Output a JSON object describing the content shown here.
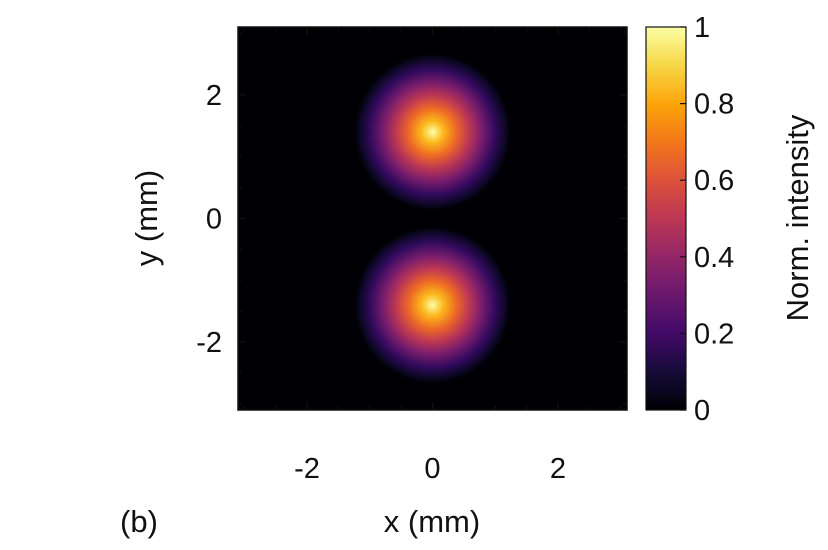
{
  "panel_label": "(b)",
  "chart_data": {
    "type": "heatmap",
    "title": "",
    "xlabel": "x (mm)",
    "ylabel": "y (mm)",
    "xlim": [
      -3.1,
      3.1
    ],
    "ylim": [
      -3.1,
      3.1
    ],
    "x_ticks": [
      -2,
      0,
      2
    ],
    "y_ticks": [
      2,
      0,
      -2
    ],
    "x_tick_labels": [
      "-2",
      "0",
      "2"
    ],
    "y_tick_labels": [
      "2",
      "0",
      "-2"
    ],
    "colormap": "inferno",
    "spots": [
      {
        "x": 0,
        "y": 1.4,
        "peak": 1.0,
        "width_mm": 0.5
      },
      {
        "x": 0,
        "y": -1.4,
        "peak": 1.0,
        "width_mm": 0.5
      }
    ],
    "colorbar": {
      "label": "Norm. intensity",
      "range": [
        0,
        1
      ],
      "ticks": [
        1,
        0.8,
        0.6,
        0.4,
        0.2,
        0
      ],
      "tick_labels": [
        "1",
        "0.8",
        "0.6",
        "0.4",
        "0.2",
        "0"
      ]
    }
  }
}
